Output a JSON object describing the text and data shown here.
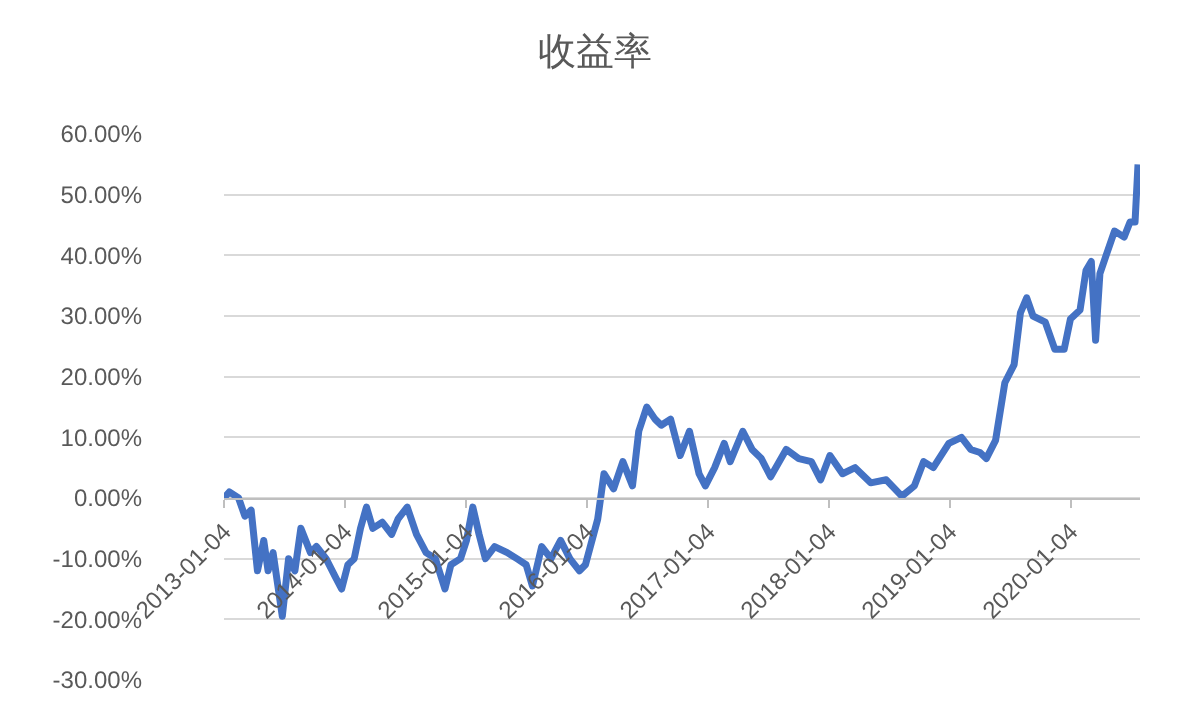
{
  "chart_data": {
    "type": "line",
    "title": "收益率",
    "x": [
      "2013-01-04",
      "2013-01-20",
      "2013-02-17",
      "2013-03-08",
      "2013-03-27",
      "2013-04-15",
      "2013-05-04",
      "2013-05-17",
      "2013-06-01",
      "2013-06-29",
      "2013-07-18",
      "2013-08-06",
      "2013-08-24",
      "2013-09-22",
      "2013-10-10",
      "2013-11-08",
      "2013-12-06",
      "2013-12-25",
      "2014-01-13",
      "2014-02-01",
      "2014-02-20",
      "2014-03-10",
      "2014-03-29",
      "2014-04-27",
      "2014-05-25",
      "2014-06-13",
      "2014-07-11",
      "2014-08-08",
      "2014-09-06",
      "2014-10-04",
      "2014-11-02",
      "2014-11-20",
      "2014-12-19",
      "2015-01-06",
      "2015-01-25",
      "2015-02-13",
      "2015-03-04",
      "2015-04-01",
      "2015-05-09",
      "2015-06-07",
      "2015-07-05",
      "2015-07-24",
      "2015-08-21",
      "2015-09-18",
      "2015-10-17",
      "2015-11-14",
      "2015-12-13",
      "2015-12-31",
      "2016-02-06",
      "2016-02-25",
      "2016-03-25",
      "2016-04-22",
      "2016-05-21",
      "2016-06-09",
      "2016-07-03",
      "2016-07-28",
      "2016-08-16",
      "2016-09-13",
      "2016-10-12",
      "2016-11-09",
      "2016-12-08",
      "2016-12-27",
      "2017-01-24",
      "2017-02-22",
      "2017-03-12",
      "2017-04-19",
      "2017-05-17",
      "2017-06-14",
      "2017-07-12",
      "2017-08-28",
      "2017-10-05",
      "2017-11-12",
      "2017-12-10",
      "2018-01-07",
      "2018-02-14",
      "2018-03-24",
      "2018-05-10",
      "2018-06-26",
      "2018-08-12",
      "2018-09-19",
      "2018-10-17",
      "2018-11-15",
      "2019-01-01",
      "2019-02-08",
      "2019-03-08",
      "2019-04-05",
      "2019-04-24",
      "2019-05-22",
      "2019-06-19",
      "2019-07-17",
      "2019-08-05",
      "2019-08-24",
      "2019-09-12",
      "2019-10-19",
      "2019-11-17",
      "2019-12-15",
      "2020-01-03",
      "2020-02-01",
      "2020-02-19",
      "2020-03-06",
      "2020-03-19",
      "2020-04-01",
      "2020-04-26",
      "2020-05-15",
      "2020-06-13",
      "2020-07-01",
      "2020-07-16",
      "2020-07-25"
    ],
    "series": [
      {
        "color": "#4472c4",
        "values": [
          0,
          1,
          0,
          -3,
          -2,
          -12,
          -7,
          -12,
          -9,
          -19.5,
          -10,
          -12,
          -5,
          -9,
          -8,
          -10,
          -13,
          -15,
          -11,
          -10,
          -5,
          -1.5,
          -5,
          -4,
          -6,
          -3.5,
          -1.5,
          -6,
          -9,
          -10,
          -15,
          -11,
          -10,
          -7,
          -1.5,
          -6,
          -10,
          -8,
          -9,
          -10,
          -11,
          -14.5,
          -8,
          -10,
          -7,
          -10,
          -12,
          -11,
          -3.5,
          4,
          1.5,
          6,
          2,
          11,
          15,
          13,
          12,
          13,
          7,
          11,
          4,
          2,
          5,
          9,
          6,
          11,
          8,
          6.5,
          3.5,
          8,
          6.5,
          6,
          3,
          7,
          4,
          5,
          2.5,
          3,
          0.3,
          2,
          6,
          5,
          9,
          10,
          8,
          7.5,
          6.5,
          9.5,
          19,
          22,
          30.5,
          33,
          30,
          29,
          24.5,
          24.5,
          29.5,
          31,
          37.5,
          39,
          26,
          37,
          41,
          44,
          43,
          45.5,
          45.5,
          55
        ]
      }
    ],
    "xlim": [
      "2013-01-04",
      "2020-07-31"
    ],
    "xticks": [
      {
        "value": "2013-01-04",
        "label": "2013-01-04"
      },
      {
        "value": "2014-01-04",
        "label": "2014-01-04"
      },
      {
        "value": "2015-01-04",
        "label": "2015-01-04"
      },
      {
        "value": "2016-01-04",
        "label": "2016-01-04"
      },
      {
        "value": "2017-01-04",
        "label": "2017-01-04"
      },
      {
        "value": "2018-01-04",
        "label": "2018-01-04"
      },
      {
        "value": "2019-01-04",
        "label": "2019-01-04"
      },
      {
        "value": "2020-01-04",
        "label": "2020-01-04"
      }
    ],
    "ylim": [
      -30,
      60
    ],
    "yticks": [
      {
        "value": -30,
        "label": "-30.00%"
      },
      {
        "value": -20,
        "label": "-20.00%"
      },
      {
        "value": -10,
        "label": "-10.00%"
      },
      {
        "value": 0,
        "label": "0.00%"
      },
      {
        "value": 10,
        "label": "10.00%"
      },
      {
        "value": 20,
        "label": "20.00%"
      },
      {
        "value": 30,
        "label": "30.00%"
      },
      {
        "value": 40,
        "label": "40.00%"
      },
      {
        "value": 50,
        "label": "50.00%"
      },
      {
        "value": 60,
        "label": "60.00%"
      }
    ],
    "grid": "y",
    "marker": "none",
    "line_style": "solid"
  }
}
